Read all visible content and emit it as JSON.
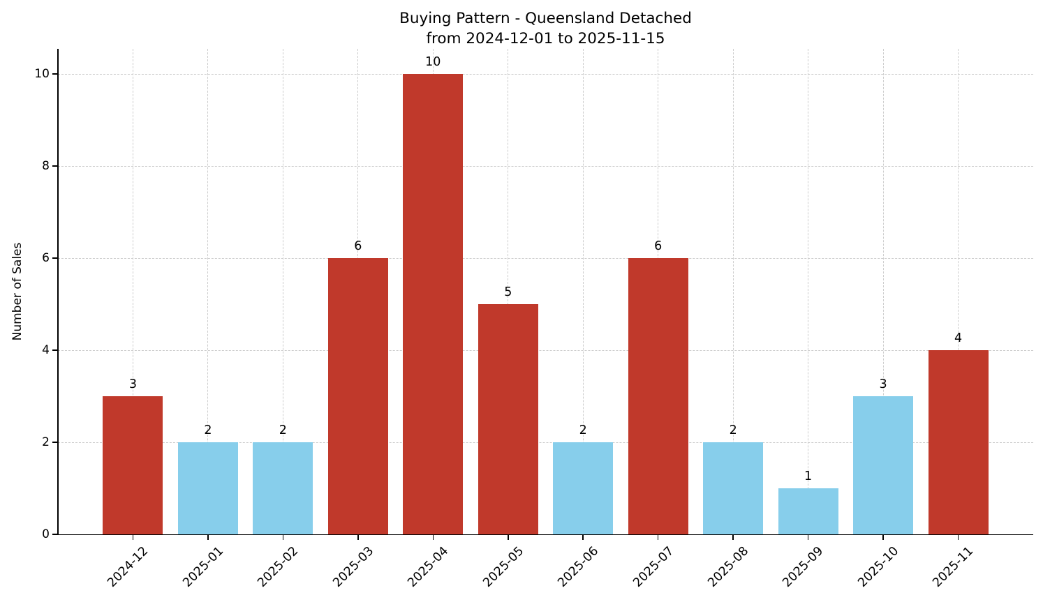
{
  "chart_data": {
    "type": "bar",
    "title": "Buying Pattern - Queensland Detached",
    "subtitle": "from 2024-12-01 to 2025-11-15",
    "xlabel": "",
    "ylabel": "Number of Sales",
    "categories": [
      "2024-12",
      "2025-01",
      "2025-02",
      "2025-03",
      "2025-04",
      "2025-05",
      "2025-06",
      "2025-07",
      "2025-08",
      "2025-09",
      "2025-10",
      "2025-11"
    ],
    "values": [
      3,
      2,
      2,
      6,
      10,
      5,
      2,
      6,
      2,
      1,
      3,
      4
    ],
    "bar_colors": [
      "#c0392b",
      "#87CEEB",
      "#87CEEB",
      "#c0392b",
      "#c0392b",
      "#c0392b",
      "#87CEEB",
      "#c0392b",
      "#87CEEB",
      "#87CEEB",
      "#87CEEB",
      "#c0392b"
    ],
    "value_labels": [
      "3",
      "2",
      "2",
      "6",
      "10",
      "5",
      "2",
      "6",
      "2",
      "1",
      "3",
      "4"
    ],
    "yticks": [
      0,
      2,
      4,
      6,
      8,
      10
    ],
    "ylim": [
      0,
      10.55
    ],
    "grid": "dashed",
    "colors": {
      "bar_red": "#c0392b",
      "bar_blue": "#87CEEB",
      "grid": "#cccccc",
      "axis": "#000000",
      "background": "#ffffff"
    },
    "legend": "none"
  }
}
